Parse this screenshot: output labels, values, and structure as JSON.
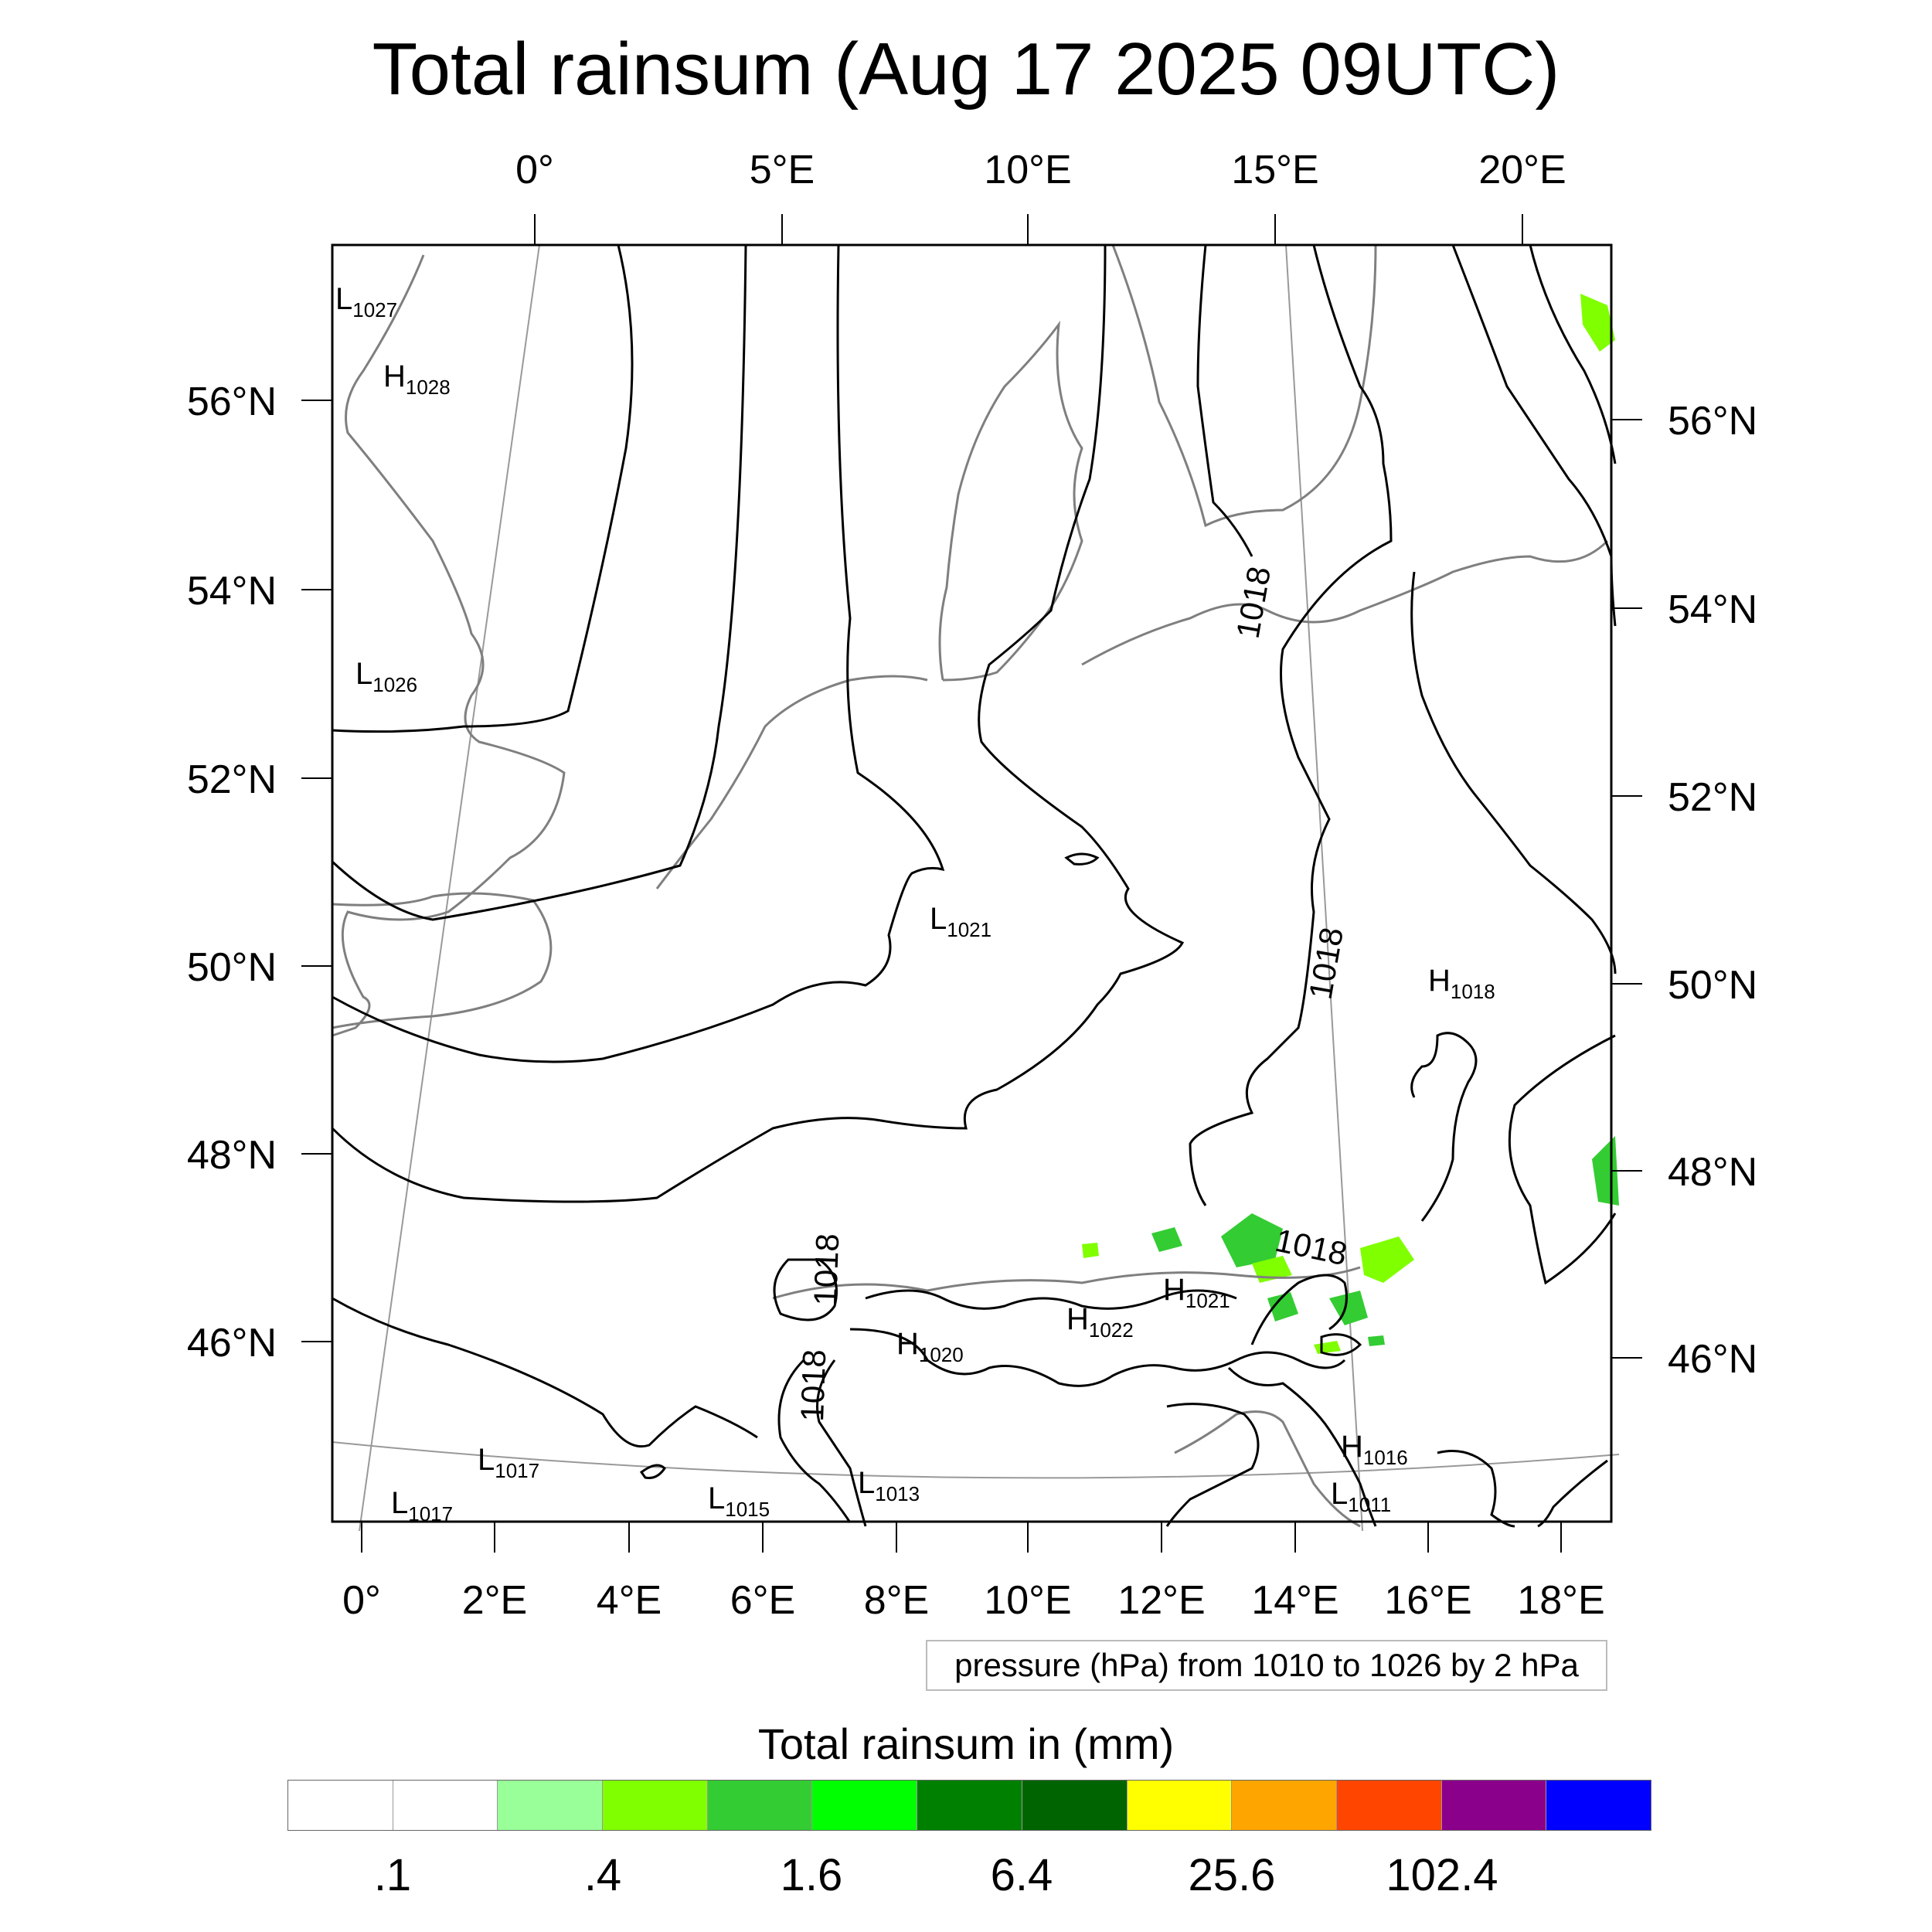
{
  "title": "Total rainsum (Aug 17 2025 09UTC)",
  "map": {
    "top_lon_labels": [
      "0°",
      "5°E",
      "10°E",
      "15°E",
      "20°E"
    ],
    "bottom_lon_labels": [
      "0°",
      "2°E",
      "4°E",
      "6°E",
      "8°E",
      "10°E",
      "12°E",
      "14°E",
      "16°E",
      "18°E"
    ],
    "left_lat_labels": [
      "56°N",
      "54°N",
      "52°N",
      "50°N",
      "48°N",
      "46°N"
    ],
    "right_lat_labels": [
      "56°N",
      "54°N",
      "52°N",
      "50°N",
      "48°N",
      "46°N"
    ],
    "pressure_centers": [
      {
        "type": "L",
        "value": "1027"
      },
      {
        "type": "H",
        "value": "1028"
      },
      {
        "type": "L",
        "value": "1026"
      },
      {
        "type": "L",
        "value": "1021"
      },
      {
        "type": "H",
        "value": "1018"
      },
      {
        "type": "H",
        "value": "1021"
      },
      {
        "type": "H",
        "value": "1022"
      },
      {
        "type": "H",
        "value": "1020"
      },
      {
        "type": "L",
        "value": "1017"
      },
      {
        "type": "L",
        "value": "1017"
      },
      {
        "type": "L",
        "value": "1015"
      },
      {
        "type": "L",
        "value": "1013"
      },
      {
        "type": "H",
        "value": "1016"
      },
      {
        "type": "L",
        "value": "1011"
      }
    ],
    "contour_labels": [
      "1018",
      "1018",
      "1018",
      "1018",
      "1018"
    ],
    "colors": {
      "coast": "#7f7f7f",
      "isobar": "#000000",
      "graticule": "#999999"
    }
  },
  "pressure_note": "pressure (hPa) from 1010 to 1026 by 2 hPa",
  "colorbar": {
    "title": "Total rainsum in (mm)",
    "colors": [
      "#ffffff",
      "#ffffff",
      "#99ff99",
      "#80ff00",
      "#33cc33",
      "#00ff00",
      "#008000",
      "#006400",
      "#ffff00",
      "#ffa500",
      "#ff4500",
      "#8b008b",
      "#0000ff"
    ],
    "tick_labels": [
      ".1",
      ".4",
      "1.6",
      "6.4",
      "25.6",
      "102.4"
    ]
  }
}
